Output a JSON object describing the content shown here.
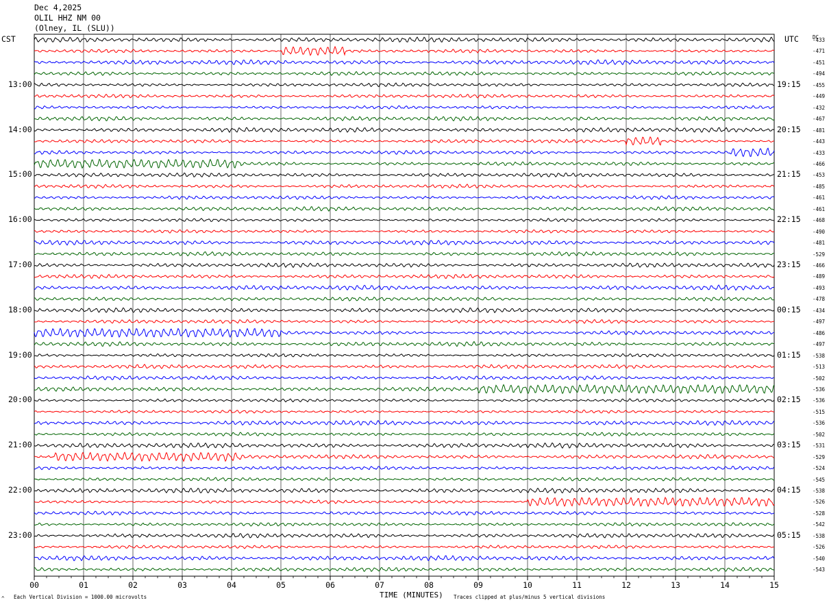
{
  "header": {
    "date": "Dec 4,2025",
    "station": "OLIL HHZ NM 00",
    "location": "(Olney, IL (SLU))"
  },
  "left_tz": "CST",
  "right_tz": "UTC",
  "dc_label": "DC",
  "footer": {
    "scale_note": "Each Vertical Division = 1000.00 microvolts",
    "xlabel": "TIME (MINUTES)",
    "clip_note": "Traces clipped at plus/minus 5 vertical divisions",
    "corner_mark": "^"
  },
  "colors": [
    "#000000",
    "#ff0000",
    "#0000ff",
    "#006400"
  ],
  "chart_data": {
    "type": "line",
    "title": "OLIL HHZ NM 00",
    "xlabel": "TIME (MINUTES)",
    "x_ticks": [
      "00",
      "01",
      "02",
      "03",
      "04",
      "05",
      "06",
      "07",
      "08",
      "09",
      "10",
      "11",
      "12",
      "13",
      "14",
      "15"
    ],
    "xlim": [
      0,
      15
    ],
    "left_hour_labels": [
      "13:00",
      "14:00",
      "15:00",
      "16:00",
      "17:00",
      "18:00",
      "19:00",
      "20:00",
      "21:00",
      "22:00",
      "23:00"
    ],
    "right_hour_labels": [
      "19:15",
      "20:15",
      "21:15",
      "22:15",
      "23:15",
      "00:15",
      "01:15",
      "02:15",
      "03:15",
      "04:15",
      "05:15"
    ],
    "dc_offsets": [
      "-433",
      "-471",
      "-451",
      "-494",
      "-455",
      "-449",
      "-432",
      "-467",
      "-481",
      "-443",
      "-433",
      "-466",
      "-453",
      "-485",
      "-461",
      "-461",
      "-468",
      "-490",
      "-481",
      "-529",
      "-466",
      "-489",
      "-493",
      "-478",
      "-434",
      "-497",
      "-486",
      "-497",
      "-538",
      "-513",
      "-502",
      "-536",
      "-536",
      "-515",
      "-536",
      "-502",
      "-531",
      "-529",
      "-524",
      "-545",
      "-538",
      "-526",
      "-528",
      "-542",
      "-538",
      "-526",
      "-540",
      "-543"
    ],
    "trace_count": 48,
    "trace_colors": [
      "black",
      "red",
      "blue",
      "green"
    ],
    "bursts": [
      {
        "trace": 1,
        "x": [
          5.0,
          6.3
        ]
      },
      {
        "trace": 9,
        "x": [
          12.0,
          12.7
        ]
      },
      {
        "trace": 10,
        "x": [
          14.1,
          15.0
        ]
      },
      {
        "trace": 11,
        "x": [
          0.0,
          4.2
        ]
      },
      {
        "trace": 31,
        "x": [
          9.0,
          15.0
        ]
      },
      {
        "trace": 37,
        "x": [
          0.4,
          4.2
        ]
      },
      {
        "trace": 41,
        "x": [
          10.0,
          15.0
        ]
      },
      {
        "trace": 26,
        "x": [
          0.0,
          5.0
        ]
      }
    ]
  }
}
